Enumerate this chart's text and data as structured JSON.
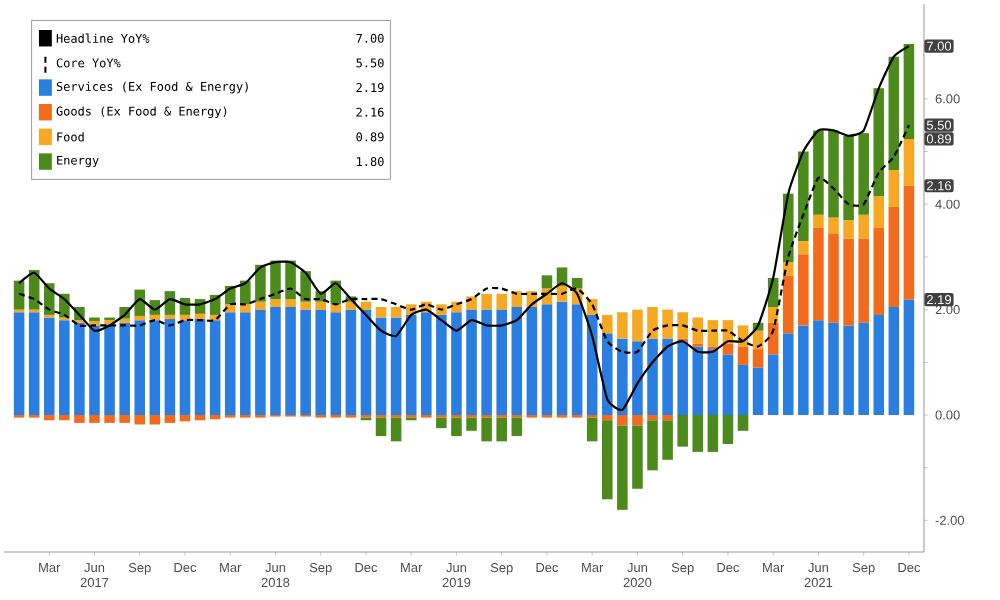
{
  "chart_data": {
    "type": "bar",
    "stacked": true,
    "legend": "top left",
    "marker": "none",
    "x": [
      "2017-01",
      "2017-02",
      "2017-03",
      "2017-04",
      "2017-05",
      "2017-06",
      "2017-07",
      "2017-08",
      "2017-09",
      "2017-10",
      "2017-11",
      "2017-12",
      "2018-01",
      "2018-02",
      "2018-03",
      "2018-04",
      "2018-05",
      "2018-06",
      "2018-07",
      "2018-08",
      "2018-09",
      "2018-10",
      "2018-11",
      "2018-12",
      "2019-01",
      "2019-02",
      "2019-03",
      "2019-04",
      "2019-05",
      "2019-06",
      "2019-07",
      "2019-08",
      "2019-09",
      "2019-10",
      "2019-11",
      "2019-12",
      "2020-01",
      "2020-02",
      "2020-03",
      "2020-04",
      "2020-05",
      "2020-06",
      "2020-07",
      "2020-08",
      "2020-09",
      "2020-10",
      "2020-11",
      "2020-12",
      "2021-01",
      "2021-02",
      "2021-03",
      "2021-04",
      "2021-05",
      "2021-06",
      "2021-07",
      "2021-08",
      "2021-09",
      "2021-10",
      "2021-11",
      "2021-12"
    ],
    "xlim": [
      "2016-12",
      "2022-01"
    ],
    "xticks": [
      {
        "value": "2017-03",
        "label": "Mar"
      },
      {
        "value": "2017-06",
        "label": "Jun 2017"
      },
      {
        "value": "2017-09",
        "label": "Sep"
      },
      {
        "value": "2017-12",
        "label": "Dec"
      },
      {
        "value": "2018-03",
        "label": "Mar"
      },
      {
        "value": "2018-06",
        "label": "Jun 2018"
      },
      {
        "value": "2018-09",
        "label": "Sep"
      },
      {
        "value": "2018-12",
        "label": "Dec"
      },
      {
        "value": "2019-03",
        "label": "Mar"
      },
      {
        "value": "2019-06",
        "label": "Jun 2019"
      },
      {
        "value": "2019-09",
        "label": "Sep"
      },
      {
        "value": "2019-12",
        "label": "Dec"
      },
      {
        "value": "2020-03",
        "label": "Mar"
      },
      {
        "value": "2020-06",
        "label": "Jun 2020"
      },
      {
        "value": "2020-09",
        "label": "Sep"
      },
      {
        "value": "2020-12",
        "label": "Dec"
      },
      {
        "value": "2021-03",
        "label": "Mar"
      },
      {
        "value": "2021-06",
        "label": "Jun 2021"
      },
      {
        "value": "2021-09",
        "label": "Sep"
      },
      {
        "value": "2021-12",
        "label": "Dec"
      }
    ],
    "ylim": [
      -2.6,
      7.8
    ],
    "yticks": [
      {
        "value": -2,
        "label": "-2.00"
      },
      {
        "value": -1,
        "label": null
      },
      {
        "value": 0,
        "label": "0.00"
      },
      {
        "value": 1,
        "label": null
      },
      {
        "value": 2,
        "label": "2.00"
      },
      {
        "value": 3,
        "label": null
      },
      {
        "value": 4,
        "label": "4.00"
      },
      {
        "value": 5,
        "label": null
      },
      {
        "value": 6,
        "label": "6.00"
      },
      {
        "value": 7,
        "label": null
      }
    ],
    "series": [
      {
        "name": "Headline YoY%",
        "type": "line",
        "color": "#000000",
        "line_style": "solid",
        "values": [
          2.5,
          2.7,
          2.4,
          2.2,
          1.9,
          1.6,
          1.7,
          1.9,
          2.2,
          2.0,
          2.2,
          2.1,
          2.1,
          2.2,
          2.4,
          2.5,
          2.8,
          2.9,
          2.9,
          2.7,
          2.3,
          2.5,
          2.2,
          1.9,
          1.6,
          1.5,
          1.9,
          2.0,
          1.8,
          1.6,
          1.8,
          1.7,
          1.7,
          1.8,
          2.1,
          2.3,
          2.5,
          2.3,
          1.5,
          0.3,
          0.1,
          0.6,
          1.0,
          1.3,
          1.4,
          1.2,
          1.2,
          1.4,
          1.4,
          1.7,
          2.6,
          4.2,
          5.0,
          5.4,
          5.4,
          5.3,
          5.4,
          6.2,
          6.8,
          7.0
        ]
      },
      {
        "name": "Core YoY%",
        "type": "line",
        "color": "#000000",
        "line_style": "dashed",
        "values": [
          2.3,
          2.2,
          2.0,
          1.9,
          1.7,
          1.7,
          1.7,
          1.7,
          1.7,
          1.8,
          1.7,
          1.8,
          1.8,
          1.8,
          2.1,
          2.1,
          2.2,
          2.3,
          2.4,
          2.2,
          2.2,
          2.1,
          2.2,
          2.2,
          2.2,
          2.1,
          2.0,
          2.1,
          2.0,
          2.1,
          2.2,
          2.4,
          2.4,
          2.3,
          2.3,
          2.3,
          2.3,
          2.4,
          2.1,
          1.4,
          1.2,
          1.2,
          1.6,
          1.7,
          1.7,
          1.6,
          1.6,
          1.6,
          1.4,
          1.3,
          1.6,
          3.0,
          3.8,
          4.5,
          4.3,
          4.0,
          4.0,
          4.6,
          4.9,
          5.5
        ]
      },
      {
        "name": "Services (Ex Food & Energy)",
        "color": "#2a7de1",
        "values": [
          1.95,
          1.95,
          1.85,
          1.8,
          1.75,
          1.7,
          1.72,
          1.75,
          1.8,
          1.8,
          1.82,
          1.8,
          1.82,
          1.8,
          1.95,
          1.95,
          2.0,
          2.05,
          2.05,
          2.0,
          2.0,
          1.95,
          2.0,
          2.0,
          1.85,
          1.85,
          1.9,
          1.95,
          1.9,
          1.95,
          2.0,
          2.0,
          2.0,
          2.05,
          2.05,
          2.1,
          2.15,
          2.1,
          1.9,
          1.55,
          1.45,
          1.4,
          1.45,
          1.45,
          1.4,
          1.3,
          1.25,
          1.15,
          0.95,
          0.9,
          1.15,
          1.55,
          1.7,
          1.8,
          1.75,
          1.7,
          1.75,
          1.9,
          2.05,
          2.19
        ]
      },
      {
        "name": "Goods (Ex Food & Energy)",
        "color": "#f26a1b",
        "values": [
          -0.05,
          -0.05,
          -0.1,
          -0.1,
          -0.15,
          -0.15,
          -0.15,
          -0.15,
          -0.18,
          -0.18,
          -0.15,
          -0.12,
          -0.1,
          -0.08,
          -0.05,
          -0.05,
          -0.05,
          -0.03,
          -0.03,
          -0.03,
          -0.05,
          -0.05,
          -0.05,
          -0.05,
          -0.05,
          -0.05,
          -0.05,
          -0.05,
          -0.05,
          -0.05,
          -0.05,
          -0.05,
          -0.05,
          -0.05,
          -0.05,
          -0.05,
          -0.05,
          -0.05,
          -0.05,
          -0.1,
          -0.2,
          -0.2,
          -0.1,
          -0.1,
          0.05,
          0.05,
          0.05,
          0.2,
          0.35,
          0.35,
          0.6,
          1.1,
          1.35,
          1.75,
          1.7,
          1.65,
          1.6,
          1.65,
          1.9,
          2.16
        ]
      },
      {
        "name": "Food",
        "color": "#f7a823",
        "values": [
          0.05,
          0.05,
          0.05,
          0.05,
          0.05,
          0.08,
          0.08,
          0.08,
          0.08,
          0.1,
          0.08,
          0.1,
          0.1,
          0.1,
          0.15,
          0.15,
          0.15,
          0.15,
          0.15,
          0.15,
          0.15,
          0.15,
          0.15,
          0.15,
          0.2,
          0.2,
          0.2,
          0.2,
          0.2,
          0.2,
          0.25,
          0.3,
          0.3,
          0.3,
          0.3,
          0.3,
          0.3,
          0.3,
          0.3,
          0.35,
          0.5,
          0.6,
          0.6,
          0.55,
          0.5,
          0.5,
          0.5,
          0.45,
          0.4,
          0.35,
          0.3,
          0.25,
          0.25,
          0.25,
          0.3,
          0.35,
          0.45,
          0.6,
          0.7,
          0.89
        ]
      },
      {
        "name": "Energy",
        "color": "#4d8a1c",
        "values": [
          0.55,
          0.75,
          0.6,
          0.45,
          0.25,
          0.07,
          0.05,
          0.22,
          0.5,
          0.28,
          0.45,
          0.32,
          0.28,
          0.38,
          0.35,
          0.45,
          0.7,
          0.73,
          0.73,
          0.58,
          0.2,
          0.45,
          0.1,
          -0.05,
          -0.35,
          -0.45,
          -0.05,
          0.0,
          -0.2,
          -0.35,
          -0.25,
          -0.45,
          -0.45,
          -0.35,
          0.0,
          0.25,
          0.35,
          0.2,
          -0.45,
          -1.5,
          -1.6,
          -1.2,
          -0.95,
          -0.75,
          -0.6,
          -0.7,
          -0.7,
          -0.55,
          -0.3,
          0.15,
          0.55,
          1.3,
          1.7,
          1.6,
          1.65,
          1.6,
          1.55,
          2.05,
          2.15,
          1.8
        ]
      }
    ],
    "annotations": [
      "7.00",
      "5.50",
      "2.19",
      "2.16",
      "0.89",
      "1.80",
      {
        "text": "7.00",
        "x": "2021-12",
        "y": 7.0
      },
      {
        "text": "5.50",
        "x": "2021-12",
        "y": 5.5
      },
      {
        "text": "0.89",
        "x": "2021-12",
        "y": 5.24
      },
      {
        "text": "2.16",
        "x": "2021-12",
        "y": 4.35
      },
      {
        "text": "2.19",
        "x": "2021-12",
        "y": 2.19
      }
    ]
  }
}
